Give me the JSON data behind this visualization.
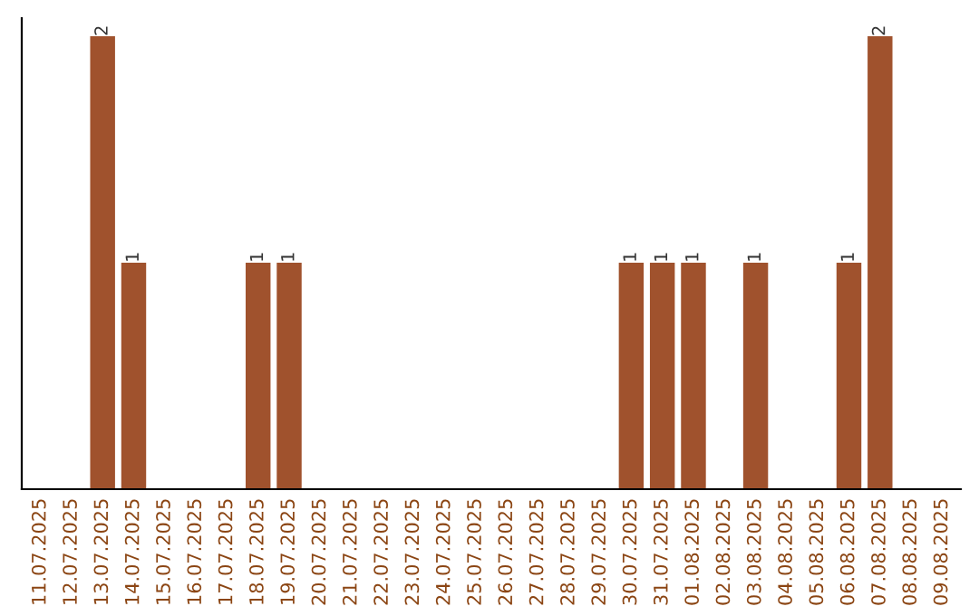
{
  "chart_data": {
    "type": "bar",
    "categories": [
      "11.07.2025",
      "12.07.2025",
      "13.07.2025",
      "14.07.2025",
      "15.07.2025",
      "16.07.2025",
      "17.07.2025",
      "18.07.2025",
      "19.07.2025",
      "20.07.2025",
      "21.07.2025",
      "22.07.2025",
      "23.07.2025",
      "24.07.2025",
      "25.07.2025",
      "26.07.2025",
      "27.07.2025",
      "28.07.2025",
      "29.07.2025",
      "30.07.2025",
      "31.07.2025",
      "01.08.2025",
      "02.08.2025",
      "03.08.2025",
      "04.08.2025",
      "05.08.2025",
      "06.08.2025",
      "07.08.2025",
      "08.08.2025",
      "09.08.2025"
    ],
    "values": [
      0,
      0,
      2,
      1,
      0,
      0,
      0,
      1,
      1,
      0,
      0,
      0,
      0,
      0,
      0,
      0,
      0,
      0,
      0,
      1,
      1,
      1,
      0,
      1,
      0,
      0,
      1,
      2,
      0,
      0
    ],
    "value_labels": [
      null,
      null,
      "2",
      "1",
      null,
      null,
      null,
      "1",
      "1",
      null,
      null,
      null,
      null,
      null,
      null,
      null,
      null,
      null,
      null,
      "1",
      "1",
      "1",
      null,
      "1",
      null,
      null,
      "1",
      "2",
      null,
      null
    ],
    "color": "#a0522d",
    "ylim": [
      0,
      2.08
    ],
    "tick_labels": "x",
    "grid": false,
    "legend": false
  }
}
